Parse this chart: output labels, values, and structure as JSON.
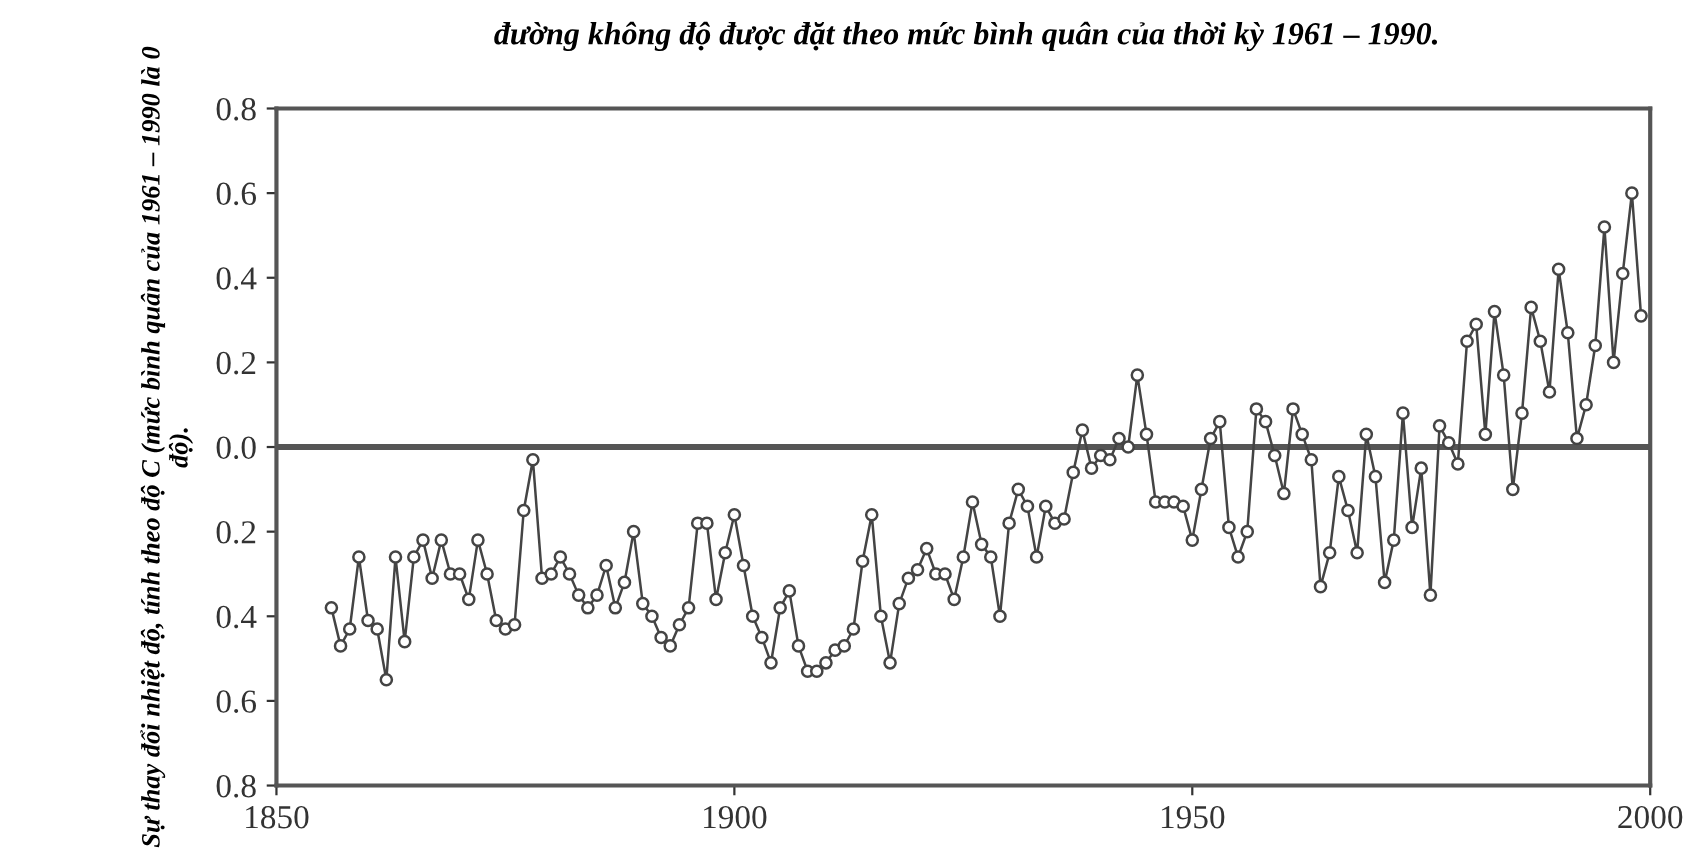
{
  "chart_data": {
    "type": "line",
    "title": "đường không độ được đặt theo mức bình quân của thời kỳ 1961 – 1990.",
    "ylabel": "Sự thay đổi nhiệt độ, tính theo độ C (mức bình quân của 1961 – 1990 là 0 độ).",
    "x": [
      1856,
      1857,
      1858,
      1859,
      1860,
      1861,
      1862,
      1863,
      1864,
      1865,
      1866,
      1867,
      1868,
      1869,
      1870,
      1871,
      1872,
      1873,
      1874,
      1875,
      1876,
      1877,
      1878,
      1879,
      1880,
      1881,
      1882,
      1883,
      1884,
      1885,
      1886,
      1887,
      1888,
      1889,
      1890,
      1891,
      1892,
      1893,
      1894,
      1895,
      1896,
      1897,
      1898,
      1899,
      1900,
      1901,
      1902,
      1903,
      1904,
      1905,
      1906,
      1907,
      1908,
      1909,
      1910,
      1911,
      1912,
      1913,
      1914,
      1915,
      1916,
      1917,
      1918,
      1919,
      1920,
      1921,
      1922,
      1923,
      1924,
      1925,
      1926,
      1927,
      1928,
      1929,
      1930,
      1931,
      1932,
      1933,
      1934,
      1935,
      1936,
      1937,
      1938,
      1939,
      1940,
      1941,
      1942,
      1943,
      1944,
      1945,
      1946,
      1947,
      1948,
      1949,
      1950,
      1951,
      1952,
      1953,
      1954,
      1955,
      1956,
      1957,
      1958,
      1959,
      1960,
      1961,
      1962,
      1963,
      1964,
      1965,
      1966,
      1967,
      1968,
      1969,
      1970,
      1971,
      1972,
      1973,
      1974,
      1975,
      1976,
      1977,
      1978,
      1979,
      1980,
      1981,
      1982,
      1983,
      1984,
      1985,
      1986,
      1987,
      1988,
      1989,
      1990,
      1991,
      1992,
      1993,
      1994,
      1995,
      1996,
      1997,
      1998,
      1999
    ],
    "series": [
      {
        "color": "#444444",
        "values": [
          -0.38,
          -0.47,
          -0.43,
          -0.26,
          -0.41,
          -0.43,
          -0.55,
          -0.26,
          -0.46,
          -0.26,
          -0.22,
          -0.31,
          -0.22,
          -0.3,
          -0.3,
          -0.36,
          -0.22,
          -0.3,
          -0.41,
          -0.43,
          -0.42,
          -0.15,
          -0.03,
          -0.31,
          -0.3,
          -0.26,
          -0.3,
          -0.35,
          -0.38,
          -0.35,
          -0.28,
          -0.38,
          -0.32,
          -0.2,
          -0.37,
          -0.4,
          -0.45,
          -0.47,
          -0.42,
          -0.38,
          -0.18,
          -0.18,
          -0.36,
          -0.25,
          -0.16,
          -0.28,
          -0.4,
          -0.45,
          -0.51,
          -0.38,
          -0.34,
          -0.47,
          -0.53,
          -0.53,
          -0.51,
          -0.48,
          -0.47,
          -0.43,
          -0.27,
          -0.16,
          -0.4,
          -0.51,
          -0.37,
          -0.31,
          -0.29,
          -0.24,
          -0.3,
          -0.3,
          -0.36,
          -0.26,
          -0.13,
          -0.23,
          -0.26,
          -0.4,
          -0.18,
          -0.1,
          -0.14,
          -0.26,
          -0.14,
          -0.18,
          -0.17,
          -0.06,
          0.04,
          -0.05,
          -0.02,
          -0.03,
          0.02,
          0.0,
          0.17,
          0.03,
          -0.13,
          -0.13,
          -0.13,
          -0.14,
          -0.22,
          -0.1,
          0.02,
          0.06,
          -0.19,
          -0.26,
          -0.2,
          0.09,
          0.06,
          -0.02,
          -0.11,
          0.09,
          0.03,
          -0.03,
          -0.33,
          -0.25,
          -0.07,
          -0.15,
          -0.25,
          0.03,
          -0.07,
          -0.32,
          -0.22,
          0.08,
          -0.19,
          -0.05,
          -0.35,
          0.05,
          0.01,
          -0.04,
          0.25,
          0.29,
          0.03,
          0.32,
          0.17,
          -0.1,
          0.08,
          0.33,
          0.25,
          0.13,
          0.42,
          0.27,
          0.02,
          0.1,
          0.24,
          0.52,
          0.2,
          0.41,
          0.6,
          0.31
        ]
      }
    ],
    "xlim": [
      1850,
      2000
    ],
    "xticks": [
      1850,
      1900,
      1950,
      2000
    ],
    "ylim": [
      -0.8,
      0.8
    ],
    "yticks": [
      {
        "value": -0.8,
        "label": "0.8"
      },
      {
        "value": -0.6,
        "label": "0.6"
      },
      {
        "value": -0.4,
        "label": "0.4"
      },
      {
        "value": -0.2,
        "label": "0.2"
      },
      {
        "value": 0.0,
        "label": "0.0"
      },
      {
        "value": 0.2,
        "label": "0.2"
      },
      {
        "value": 0.4,
        "label": "0.4"
      },
      {
        "value": 0.6,
        "label": "0.6"
      },
      {
        "value": 0.8,
        "label": "0.8"
      }
    ],
    "ref_lines": [
      {
        "axis": "y",
        "value": 0,
        "color": "#555555"
      }
    ],
    "marker": "circle",
    "line_style": "solid",
    "grid": false,
    "legend": false
  }
}
